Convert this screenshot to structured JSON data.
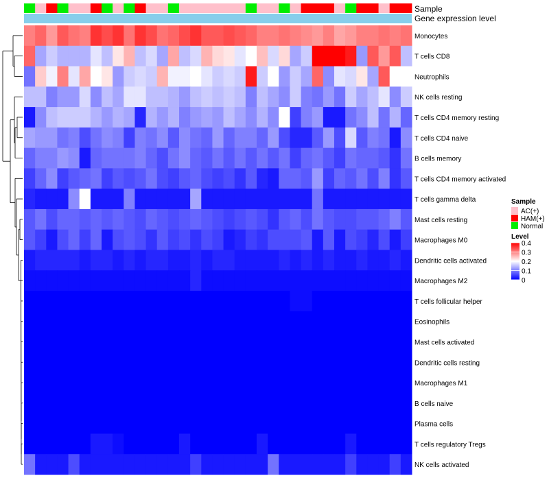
{
  "chart_data": {
    "type": "heatmap",
    "title": "",
    "annotation_tracks": [
      "Sample",
      "Gene expression level"
    ],
    "rows": [
      "Monocytes",
      "T cells CD8",
      "Neutrophils",
      "NK cells resting",
      "T cells CD4 memory resting",
      "T cells CD4 naive",
      "B cells memory",
      "T cells CD4 memory activated",
      "T cells gamma delta",
      "Mast cells resting",
      "Macrophages M0",
      "Dendritic cells activated",
      "Macrophages M2",
      "T cells follicular helper",
      "Eosinophils",
      "Mast cells activated",
      "Dendritic cells resting",
      "Macrophages M1",
      "B cells naive",
      "Plasma cells",
      "T cells regulatory  Tregs",
      "NK cells activated"
    ],
    "sample_groups": [
      "Normal",
      "AC(+)",
      "HAM(+)",
      "Normal",
      "AC(+)",
      "AC(+)",
      "HAM(+)",
      "Normal",
      "AC(+)",
      "Normal",
      "HAM(+)",
      "AC(+)",
      "AC(+)",
      "Normal",
      "AC(+)",
      "AC(+)",
      "AC(+)",
      "AC(+)",
      "AC(+)",
      "AC(+)",
      "Normal",
      "AC(+)",
      "AC(+)",
      "Normal",
      "AC(+)",
      "HAM(+)",
      "HAM(+)",
      "HAM(+)",
      "AC(+)",
      "Normal",
      "HAM(+)",
      "HAM(+)",
      "AC(+)",
      "HAM(+)",
      "HAM(+)"
    ],
    "values": [
      [
        0.3,
        0.32,
        0.28,
        0.33,
        0.31,
        0.3,
        0.36,
        0.34,
        0.36,
        0.31,
        0.36,
        0.34,
        0.31,
        0.32,
        0.34,
        0.36,
        0.33,
        0.33,
        0.34,
        0.33,
        0.32,
        0.3,
        0.3,
        0.31,
        0.3,
        0.29,
        0.28,
        0.3,
        0.27,
        0.28,
        0.3,
        0.3,
        0.31,
        0.3,
        0.31
      ],
      [
        0.32,
        0.13,
        0.16,
        0.14,
        0.14,
        0.14,
        0.18,
        0.15,
        0.22,
        0.26,
        0.15,
        0.17,
        0.13,
        0.27,
        0.15,
        0.17,
        0.26,
        0.23,
        0.22,
        0.18,
        0.2,
        0.25,
        0.17,
        0.23,
        0.13,
        0.16,
        0.4,
        0.4,
        0.4,
        0.38,
        0.12,
        0.33,
        0.28,
        0.33,
        0.15
      ],
      [
        0.09,
        0.24,
        0.19,
        0.3,
        0.18,
        0.27,
        0.2,
        0.22,
        0.12,
        0.16,
        0.17,
        0.16,
        0.26,
        0.19,
        0.19,
        0.2,
        0.18,
        0.16,
        0.17,
        0.16,
        0.38,
        0.16,
        0.2,
        0.12,
        0.16,
        0.13,
        0.32,
        0.11,
        0.18,
        0.17,
        0.22,
        0.13,
        0.33,
        0.2,
        0.2
      ],
      [
        0.15,
        0.15,
        0.1,
        0.12,
        0.12,
        0.17,
        0.11,
        0.15,
        0.13,
        0.18,
        0.18,
        0.15,
        0.15,
        0.14,
        0.12,
        0.15,
        0.16,
        0.15,
        0.16,
        0.15,
        0.1,
        0.15,
        0.13,
        0.11,
        0.16,
        0.1,
        0.09,
        0.12,
        0.09,
        0.16,
        0.13,
        0.15,
        0.18,
        0.11,
        0.16
      ],
      [
        0.02,
        0.11,
        0.15,
        0.16,
        0.16,
        0.16,
        0.14,
        0.12,
        0.14,
        0.13,
        0.03,
        0.14,
        0.12,
        0.14,
        0.1,
        0.12,
        0.13,
        0.12,
        0.15,
        0.13,
        0.11,
        0.14,
        0.11,
        0.2,
        0.05,
        0.1,
        0.12,
        0.02,
        0.02,
        0.09,
        0.11,
        0.15,
        0.09,
        0.14,
        0.08
      ],
      [
        0.13,
        0.12,
        0.12,
        0.09,
        0.1,
        0.06,
        0.09,
        0.11,
        0.1,
        0.05,
        0.1,
        0.09,
        0.11,
        0.07,
        0.11,
        0.09,
        0.08,
        0.12,
        0.08,
        0.1,
        0.1,
        0.08,
        0.12,
        0.06,
        0.03,
        0.03,
        0.07,
        0.12,
        0.06,
        0.17,
        0.07,
        0.1,
        0.09,
        0.02,
        0.11
      ],
      [
        0.08,
        0.1,
        0.1,
        0.12,
        0.11,
        0.02,
        0.08,
        0.09,
        0.09,
        0.09,
        0.1,
        0.08,
        0.06,
        0.09,
        0.11,
        0.08,
        0.07,
        0.09,
        0.07,
        0.09,
        0.07,
        0.09,
        0.07,
        0.09,
        0.05,
        0.08,
        0.09,
        0.07,
        0.05,
        0.09,
        0.08,
        0.08,
        0.07,
        0.04,
        0.09
      ],
      [
        0.05,
        0.08,
        0.11,
        0.05,
        0.07,
        0.08,
        0.09,
        0.05,
        0.07,
        0.06,
        0.07,
        0.09,
        0.06,
        0.05,
        0.07,
        0.08,
        0.06,
        0.05,
        0.06,
        0.04,
        0.07,
        0.03,
        0.02,
        0.08,
        0.08,
        0.07,
        0.12,
        0.05,
        0.08,
        0.07,
        0.09,
        0.06,
        0.1,
        0.04,
        0.07
      ],
      [
        0.03,
        0.02,
        0.02,
        0.02,
        0.11,
        0.2,
        0.02,
        0.02,
        0.02,
        0.1,
        0.02,
        0.02,
        0.02,
        0.02,
        0.02,
        0.13,
        0.02,
        0.02,
        0.02,
        0.02,
        0.02,
        0.02,
        0.02,
        0.02,
        0.02,
        0.02,
        0.09,
        0.02,
        0.02,
        0.02,
        0.02,
        0.02,
        0.02,
        0.02,
        0.02
      ],
      [
        0.07,
        0.09,
        0.06,
        0.08,
        0.08,
        0.07,
        0.08,
        0.07,
        0.08,
        0.07,
        0.06,
        0.08,
        0.07,
        0.06,
        0.07,
        0.08,
        0.07,
        0.06,
        0.05,
        0.06,
        0.07,
        0.06,
        0.04,
        0.07,
        0.08,
        0.06,
        0.09,
        0.07,
        0.06,
        0.06,
        0.07,
        0.07,
        0.08,
        0.1,
        0.07
      ],
      [
        0.07,
        0.05,
        0.02,
        0.06,
        0.08,
        0.05,
        0.08,
        0.02,
        0.06,
        0.07,
        0.06,
        0.04,
        0.07,
        0.05,
        0.06,
        0.04,
        0.06,
        0.05,
        0.02,
        0.03,
        0.05,
        0.04,
        0.06,
        0.06,
        0.06,
        0.07,
        0.02,
        0.07,
        0.02,
        0.06,
        0.05,
        0.03,
        0.06,
        0.02,
        0.05
      ],
      [
        0.02,
        0.03,
        0.03,
        0.03,
        0.03,
        0.02,
        0.03,
        0.03,
        0.02,
        0.03,
        0.02,
        0.03,
        0.03,
        0.02,
        0.02,
        0.03,
        0.02,
        0.03,
        0.03,
        0.02,
        0.02,
        0.02,
        0.02,
        0.03,
        0.02,
        0.03,
        0.02,
        0.03,
        0.02,
        0.02,
        0.03,
        0.02,
        0.02,
        0.03,
        0.02
      ],
      [
        0.01,
        0.01,
        0.01,
        0.01,
        0.01,
        0.01,
        0.01,
        0.01,
        0.01,
        0.01,
        0.01,
        0.01,
        0.01,
        0.01,
        0.01,
        0.03,
        0.01,
        0.01,
        0.01,
        0.01,
        0.01,
        0.01,
        0.01,
        0.01,
        0.01,
        0.01,
        0.01,
        0.01,
        0.01,
        0.01,
        0.01,
        0.01,
        0.01,
        0.01,
        0.01
      ],
      [
        0.0,
        0.0,
        0.0,
        0.0,
        0.0,
        0.0,
        0.0,
        0.0,
        0.0,
        0.0,
        0.0,
        0.0,
        0.0,
        0.0,
        0.0,
        0.0,
        0.0,
        0.0,
        0.0,
        0.0,
        0.0,
        0.0,
        0.0,
        0.0,
        0.01,
        0.01,
        0.0,
        0.0,
        0.0,
        0.0,
        0.0,
        0.0,
        0.0,
        0.0,
        0.0
      ],
      [
        0.0,
        0.0,
        0.0,
        0.0,
        0.0,
        0.0,
        0.0,
        0.0,
        0.0,
        0.0,
        0.0,
        0.0,
        0.0,
        0.0,
        0.0,
        0.0,
        0.0,
        0.0,
        0.0,
        0.0,
        0.0,
        0.0,
        0.0,
        0.0,
        0.0,
        0.0,
        0.0,
        0.0,
        0.0,
        0.0,
        0.0,
        0.0,
        0.0,
        0.0,
        0.0
      ],
      [
        0.0,
        0.0,
        0.0,
        0.0,
        0.0,
        0.0,
        0.0,
        0.0,
        0.0,
        0.0,
        0.0,
        0.0,
        0.0,
        0.0,
        0.0,
        0.0,
        0.0,
        0.0,
        0.0,
        0.0,
        0.0,
        0.0,
        0.0,
        0.0,
        0.0,
        0.0,
        0.0,
        0.0,
        0.0,
        0.0,
        0.0,
        0.0,
        0.0,
        0.0,
        0.0
      ],
      [
        0.0,
        0.0,
        0.0,
        0.0,
        0.0,
        0.0,
        0.0,
        0.0,
        0.0,
        0.0,
        0.0,
        0.0,
        0.0,
        0.0,
        0.0,
        0.0,
        0.0,
        0.0,
        0.0,
        0.0,
        0.0,
        0.0,
        0.0,
        0.0,
        0.0,
        0.0,
        0.0,
        0.0,
        0.0,
        0.0,
        0.0,
        0.0,
        0.0,
        0.0,
        0.0
      ],
      [
        0.0,
        0.0,
        0.0,
        0.0,
        0.0,
        0.0,
        0.0,
        0.0,
        0.0,
        0.0,
        0.0,
        0.0,
        0.0,
        0.0,
        0.0,
        0.0,
        0.0,
        0.0,
        0.0,
        0.0,
        0.0,
        0.0,
        0.0,
        0.0,
        0.0,
        0.0,
        0.0,
        0.0,
        0.0,
        0.0,
        0.0,
        0.0,
        0.0,
        0.0,
        0.0
      ],
      [
        0.0,
        0.0,
        0.0,
        0.0,
        0.0,
        0.0,
        0.0,
        0.0,
        0.0,
        0.0,
        0.0,
        0.0,
        0.0,
        0.0,
        0.0,
        0.0,
        0.0,
        0.0,
        0.0,
        0.0,
        0.0,
        0.0,
        0.0,
        0.0,
        0.0,
        0.0,
        0.0,
        0.0,
        0.0,
        0.0,
        0.0,
        0.0,
        0.0,
        0.0,
        0.0
      ],
      [
        0.0,
        0.0,
        0.0,
        0.0,
        0.0,
        0.0,
        0.0,
        0.0,
        0.0,
        0.0,
        0.0,
        0.0,
        0.0,
        0.0,
        0.0,
        0.0,
        0.0,
        0.0,
        0.0,
        0.0,
        0.0,
        0.0,
        0.0,
        0.0,
        0.0,
        0.0,
        0.0,
        0.0,
        0.0,
        0.0,
        0.0,
        0.0,
        0.0,
        0.0,
        0.0
      ],
      [
        0.0,
        0.0,
        0.0,
        0.0,
        0.0,
        0.0,
        0.02,
        0.02,
        0.01,
        0.0,
        0.0,
        0.0,
        0.0,
        0.0,
        0.02,
        0.0,
        0.0,
        0.0,
        0.0,
        0.0,
        0.0,
        0.02,
        0.0,
        0.0,
        0.0,
        0.0,
        0.0,
        0.0,
        0.0,
        0.02,
        0.0,
        0.0,
        0.0,
        0.0,
        0.0
      ],
      [
        0.09,
        0.02,
        0.02,
        0.02,
        0.06,
        0.02,
        0.02,
        0.02,
        0.02,
        0.02,
        0.02,
        0.02,
        0.02,
        0.02,
        0.02,
        0.05,
        0.02,
        0.02,
        0.02,
        0.02,
        0.02,
        0.02,
        0.09,
        0.02,
        0.02,
        0.02,
        0.02,
        0.02,
        0.02,
        0.05,
        0.02,
        0.02,
        0.02,
        0.05,
        0.02
      ]
    ],
    "legend": {
      "sample_title": "Sample",
      "groups": [
        {
          "name": "AC(+)",
          "color": "#ffc0cb"
        },
        {
          "name": "HAM(+)",
          "color": "#ff0000"
        },
        {
          "name": "Normal",
          "color": "#00ee00"
        }
      ],
      "level_title": "Level",
      "level_ticks": [
        "0.4",
        "0.3",
        "0.2",
        "0.1",
        "0"
      ],
      "level_tick_values": [
        0.4,
        0.3,
        0.2,
        0.1,
        0
      ],
      "range": [
        0,
        0.4
      ]
    },
    "colors": {
      "low": "#0000ff",
      "mid": "#ffffff",
      "high": "#ff0000",
      "expression_bar": "#87ceeb",
      "dendrogram": "#000000"
    }
  }
}
